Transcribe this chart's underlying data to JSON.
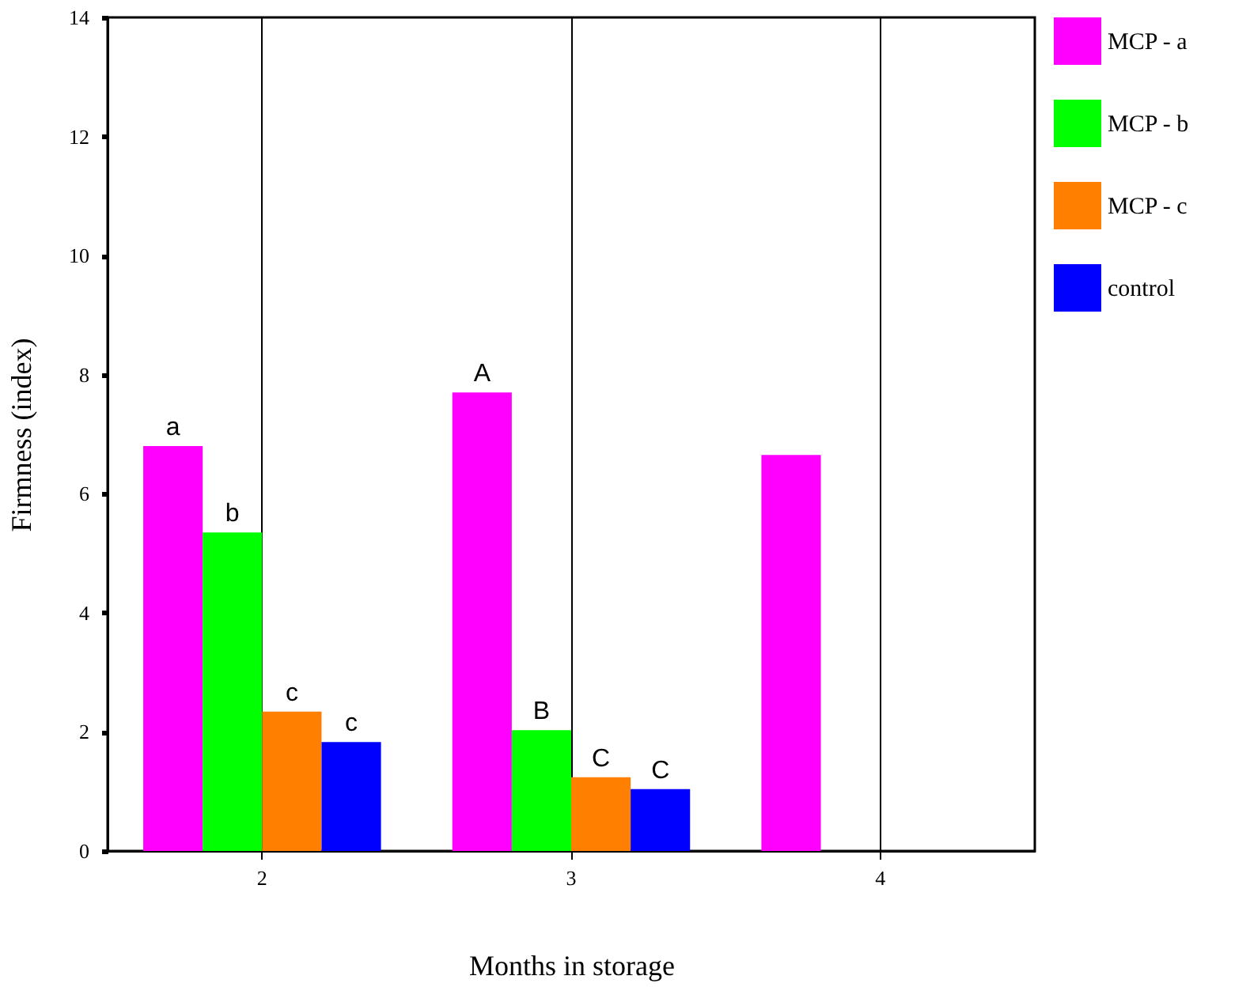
{
  "chart_data": {
    "type": "bar",
    "xlabel": "Months in storage",
    "ylabel": "Firmness (index)",
    "categories": [
      "2",
      "3",
      "4"
    ],
    "series": [
      {
        "name": "MCP - a",
        "color": "#ff00ff",
        "values": [
          6.8,
          7.7,
          6.65
        ],
        "value_labels": [
          "a",
          "A",
          null
        ]
      },
      {
        "name": "MCP - b",
        "color": "#00ff00",
        "values": [
          5.35,
          2.03,
          null
        ],
        "value_labels": [
          "b",
          "B",
          null
        ]
      },
      {
        "name": "MCP - c",
        "color": "#ff8000",
        "values": [
          2.34,
          1.24,
          null
        ],
        "value_labels": [
          "c",
          "C",
          null
        ]
      },
      {
        "name": "control",
        "color": "#0000ff",
        "values": [
          1.83,
          1.04,
          null
        ],
        "value_labels": [
          "c",
          "C",
          null
        ]
      }
    ],
    "ylim": [
      0,
      14
    ],
    "yticks": [
      0,
      2,
      4,
      6,
      8,
      10,
      12,
      14
    ],
    "grid": "x",
    "legend": "right"
  }
}
